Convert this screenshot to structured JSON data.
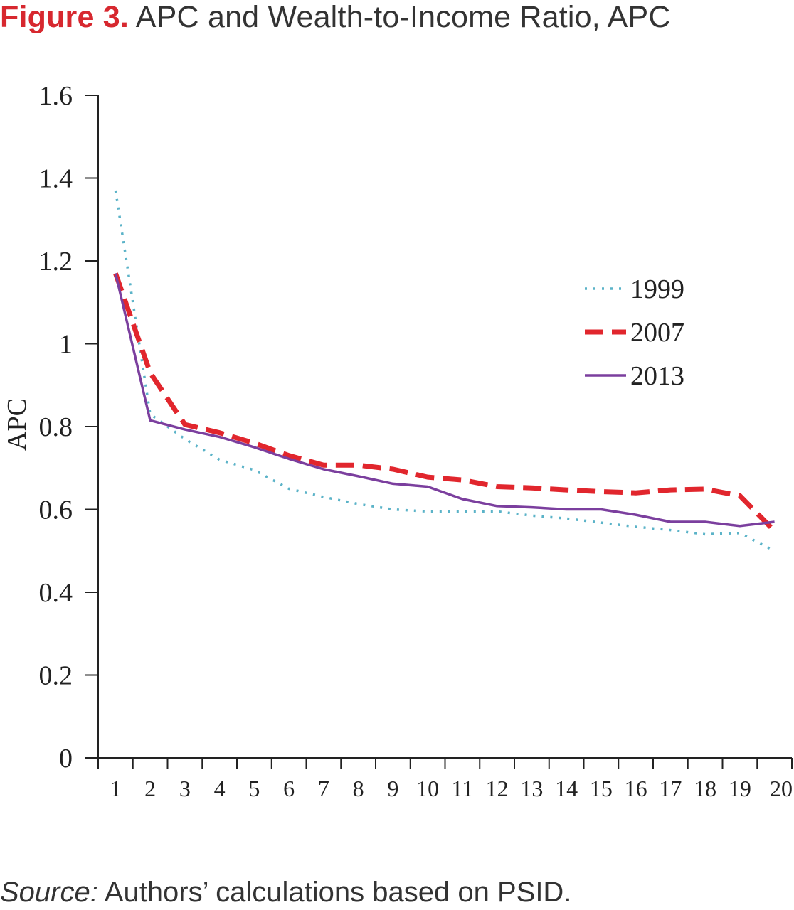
{
  "title": {
    "label": "Figure 3.",
    "text": "APC and Wealth-to-Income Ratio, APC"
  },
  "source": {
    "label": "Source:",
    "text": "Authors’ calculations based on PSID."
  },
  "chart_data": {
    "type": "line",
    "x": [
      1,
      2,
      3,
      4,
      5,
      6,
      7,
      8,
      9,
      10,
      11,
      12,
      13,
      14,
      15,
      16,
      17,
      18,
      19,
      20
    ],
    "x_tick_labels": [
      "1",
      "2",
      "3",
      "4",
      "5",
      "6",
      "7",
      "8",
      "9",
      "10",
      "11",
      "12",
      "13",
      "14",
      "15",
      "16",
      "17",
      "18",
      "19",
      "20"
    ],
    "ylabel": "APC",
    "xlabel": "",
    "ylim": [
      0,
      1.6
    ],
    "y_ticks": [
      0,
      0.2,
      0.4,
      0.6,
      0.8,
      1,
      1.2,
      1.4,
      1.6
    ],
    "y_tick_labels": [
      "0",
      "0.2",
      "0.4",
      "0.6",
      "0.8",
      "1",
      "1.2",
      "1.4",
      "1.6"
    ],
    "grid": false,
    "legend_position": "right",
    "series": [
      {
        "name": "1999",
        "color": "#5bb3c8",
        "style": "dotted",
        "values": [
          1.37,
          0.83,
          0.77,
          0.72,
          0.695,
          0.65,
          0.63,
          0.613,
          0.6,
          0.595,
          0.595,
          0.595,
          0.585,
          0.578,
          0.568,
          0.558,
          0.55,
          0.54,
          0.543,
          0.5
        ]
      },
      {
        "name": "2007",
        "color": "#e1262d",
        "style": "dashed",
        "values": [
          1.17,
          0.93,
          0.805,
          0.785,
          0.76,
          0.73,
          0.707,
          0.707,
          0.697,
          0.678,
          0.671,
          0.655,
          0.652,
          0.647,
          0.643,
          0.64,
          0.647,
          0.649,
          0.633,
          0.548
        ]
      },
      {
        "name": "2013",
        "color": "#7b3f9e",
        "style": "solid",
        "values": [
          1.17,
          0.815,
          0.793,
          0.775,
          0.75,
          0.722,
          0.697,
          0.68,
          0.662,
          0.655,
          0.625,
          0.608,
          0.605,
          0.6,
          0.6,
          0.587,
          0.57,
          0.57,
          0.56,
          0.57
        ]
      }
    ]
  }
}
